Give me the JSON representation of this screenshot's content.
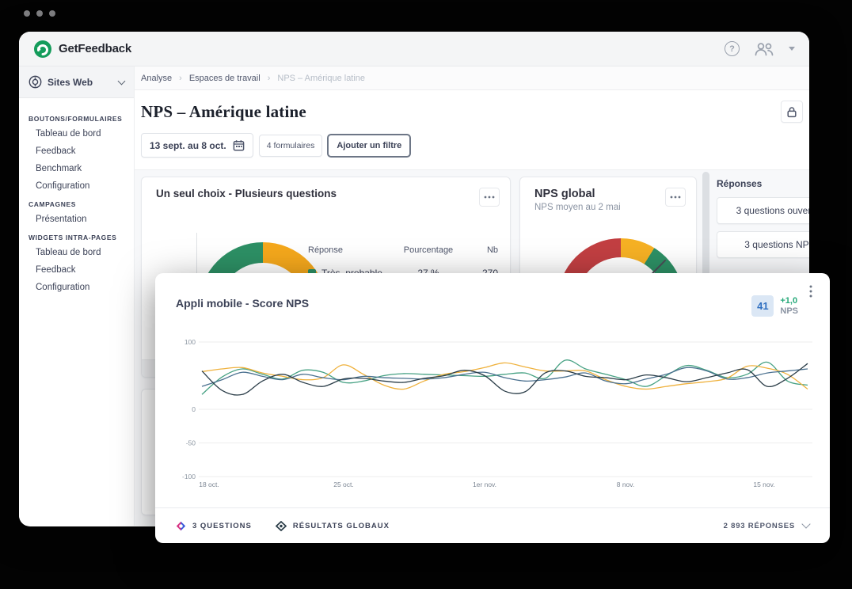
{
  "header": {
    "brand": "GetFeedback",
    "help_glyph": "?"
  },
  "sidebar": {
    "project": {
      "label": "Sites Web"
    },
    "sections": [
      {
        "label": "BOUTONS/FORMULAIRES",
        "items": [
          "Tableau de bord",
          "Feedback",
          "Benchmark",
          "Configuration"
        ]
      },
      {
        "label": "CAMPAGNES",
        "items": [
          "Présentation"
        ]
      },
      {
        "label": "WIDGETS INTRA-PAGES",
        "items": [
          "Tableau de bord",
          "Feedback",
          "Configuration"
        ]
      }
    ]
  },
  "breadcrumb": [
    "Analyse",
    "Espaces de travail",
    "NPS – Amérique latine"
  ],
  "page": {
    "title": "NPS – Amérique latine"
  },
  "filters": {
    "date_range": "13 sept. au 8 oct.",
    "forms": "4 formulaires",
    "add_filter": "Ajouter un filtre"
  },
  "cards": {
    "single_choice": {
      "title": "Un seul choix - Plusieurs questions",
      "table": {
        "headers": [
          "Réponse",
          "Pourcentage",
          "Nb"
        ],
        "rows": [
          {
            "label": "Très_probable",
            "pct": "27 %",
            "count": "270",
            "color": "#2d9065"
          }
        ]
      }
    },
    "nps_global": {
      "title": "NPS global",
      "subtitle": "NPS moyen au 2 mai"
    },
    "responses_panel": {
      "title": "Réponses",
      "buttons": [
        "3 questions ouvertes",
        "3 questions NPS"
      ]
    }
  },
  "overlay": {
    "title": "Appli mobile - Score NPS",
    "score": "41",
    "delta": "+1,0",
    "delta_unit": "NPS",
    "legend": [
      {
        "label": "3 QUESTIONS"
      },
      {
        "label": "RÉSULTATS GLOBAUX"
      }
    ],
    "responses": "2 893 RÉPONSES"
  },
  "chart_data": {
    "type": "line",
    "title": "Appli mobile - Score NPS",
    "xlabel": "",
    "ylabel": "",
    "ylim": [
      -100,
      100
    ],
    "y_ticks": [
      100,
      0,
      -50,
      -100
    ],
    "x_tick_labels": [
      "18 oct.",
      "25 oct.",
      "1er nov.",
      "8 nov.",
      "15 nov."
    ],
    "grid": true,
    "legend_position": "bottom",
    "series": [
      {
        "name": "question-a",
        "color": "#46a183",
        "values": [
          22,
          48,
          60,
          52,
          45,
          58,
          55,
          40,
          42,
          50,
          53,
          52,
          51,
          50,
          49,
          52,
          54,
          46,
          73,
          60,
          52,
          44,
          34,
          50,
          65,
          58,
          47,
          52,
          70,
          42,
          36
        ]
      },
      {
        "name": "question-b",
        "color": "#efb13c",
        "values": [
          56,
          60,
          62,
          54,
          49,
          44,
          47,
          66,
          52,
          36,
          30,
          42,
          52,
          56,
          62,
          69,
          63,
          57,
          57,
          57,
          44,
          34,
          30,
          34,
          38,
          41,
          46,
          64,
          61,
          52,
          30
        ]
      },
      {
        "name": "question-c",
        "color": "#4a708f",
        "values": [
          34,
          44,
          55,
          49,
          44,
          52,
          47,
          44,
          49,
          47,
          46,
          45,
          47,
          52,
          55,
          47,
          42,
          44,
          48,
          54,
          42,
          38,
          45,
          52,
          62,
          57,
          45,
          47,
          54,
          57,
          60
        ]
      },
      {
        "name": "resultats-globaux",
        "color": "#2c3e49",
        "values": [
          57,
          28,
          22,
          42,
          52,
          40,
          34,
          45,
          46,
          42,
          40,
          46,
          50,
          58,
          50,
          27,
          26,
          54,
          57,
          49,
          47,
          44,
          51,
          47,
          41,
          47,
          54,
          59,
          34,
          46,
          68
        ]
      }
    ]
  },
  "colors": {
    "brand_green": "#149c5b",
    "donut_green": "#2d9065",
    "donut_orange": "#f5a81c",
    "gauge_red": "#c23f42",
    "gauge_yellow": "#f6b124",
    "gauge_green": "#2d9065",
    "score_chip_bg": "#dbe7f5",
    "score_chip_text": "#2f6fc0",
    "delta_green": "#27a97a"
  }
}
